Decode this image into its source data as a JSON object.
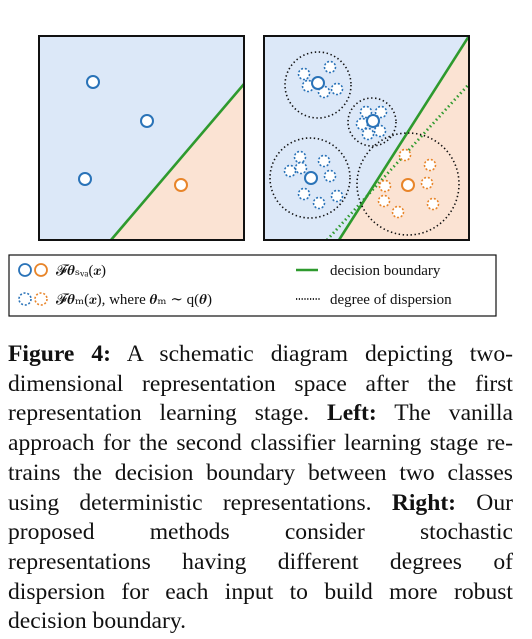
{
  "legend": {
    "deterministic_label": "𝓕𝜽ₛᵥₐ(𝒙)",
    "stochastic_label": "𝓕𝜽ₘ(𝒙), where 𝜽ₘ ∼ q(𝜽)",
    "boundary_label": "decision boundary",
    "dispersion_label": "degree of dispersion"
  },
  "caption": {
    "figure_label": "Figure 4:",
    "intro": " A schematic diagram depicting two-dimensional representation space after the first representation learning stage. ",
    "left_label": "Left:",
    "left_text": " The vanilla approach for the second classifier learning stage re-trains the decision boundary between two classes using deterministic representations. ",
    "right_label": "Right:",
    "right_text": " Our proposed methods consider stochastic representations having different degrees of dispersion for each input to build more robust decision boundary."
  },
  "colors": {
    "blue_region": "#dce8f8",
    "orange_region": "#fbe3d3",
    "blue_point": "#2a73b8",
    "orange_point": "#e8852a",
    "boundary": "#2e9a2e",
    "frame": "#111111"
  }
}
